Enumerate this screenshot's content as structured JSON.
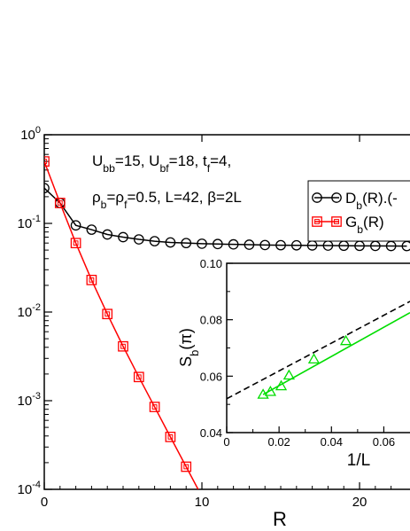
{
  "chart_data": [
    {
      "type": "line",
      "yscale": "log",
      "xlabel": "R",
      "ylabel": "",
      "xlim": [
        0,
        23.2
      ],
      "ylim": [
        0.0001,
        1
      ],
      "xticks": [
        0,
        10,
        20
      ],
      "yticks": [
        {
          "value": 1,
          "base": "10",
          "exp": "0"
        },
        {
          "value": 0.1,
          "base": "10",
          "exp": "-1"
        },
        {
          "value": 0.01,
          "base": "10",
          "exp": "-2"
        },
        {
          "value": 0.001,
          "base": "10",
          "exp": "-3"
        },
        {
          "value": 0.0001,
          "base": "10",
          "exp": "-4"
        }
      ],
      "annotation": {
        "line1": [
          {
            "t": "U",
            "s": "n"
          },
          {
            "t": "bb",
            "s": "sub"
          },
          {
            "t": "=15, U",
            "s": "n"
          },
          {
            "t": "bf",
            "s": "sub"
          },
          {
            "t": "=18, t",
            "s": "n"
          },
          {
            "t": "f",
            "s": "sub"
          },
          {
            "t": "=4,",
            "s": "n"
          }
        ],
        "line2": [
          {
            "t": "ρ",
            "s": "n"
          },
          {
            "t": "b",
            "s": "sub"
          },
          {
            "t": "=ρ",
            "s": "n"
          },
          {
            "t": "f",
            "s": "sub"
          },
          {
            "t": "=0.5, L=42, β=2L",
            "s": "n"
          }
        ]
      },
      "legend": {
        "placement": "top-right",
        "entries": [
          {
            "parts": [
              {
                "t": "D",
                "s": "n"
              },
              {
                "t": "b",
                "s": "sub"
              },
              {
                "t": "(R).(-",
                "s": "n"
              }
            ],
            "color": "#000000",
            "marker": "circle"
          },
          {
            "parts": [
              {
                "t": "G",
                "s": "n"
              },
              {
                "t": "b",
                "s": "sub"
              },
              {
                "t": "(R)",
                "s": "n"
              }
            ],
            "color": "#ff0000",
            "marker": "square"
          }
        ]
      },
      "series": [
        {
          "color": "#000000",
          "marker": "circle",
          "x": [
            0,
            1,
            2,
            3,
            4,
            5,
            6,
            7,
            8,
            9,
            10,
            11,
            12,
            13,
            14,
            15,
            16,
            17,
            18,
            19,
            20,
            21,
            22,
            23
          ],
          "y": [
            0.25,
            0.17,
            0.095,
            0.085,
            0.075,
            0.07,
            0.066,
            0.063,
            0.061,
            0.06,
            0.059,
            0.0585,
            0.058,
            0.0575,
            0.057,
            0.0568,
            0.0566,
            0.0564,
            0.0562,
            0.056,
            0.0558,
            0.0557,
            0.0556,
            0.0555
          ]
        },
        {
          "color": "#ff0000",
          "marker": "square",
          "x": [
            0,
            1,
            2,
            3,
            4,
            5,
            6,
            7,
            8,
            9,
            10
          ],
          "y": [
            0.5,
            0.17,
            0.06,
            0.023,
            0.0095,
            0.0041,
            0.00185,
            0.00085,
            0.00039,
            0.00018,
            8.3e-05
          ]
        }
      ]
    },
    {
      "type": "line",
      "xlabel": "1/L",
      "ylabel_parts": [
        {
          "t": "S",
          "s": "n"
        },
        {
          "t": "b",
          "s": "sub"
        },
        {
          "t": "(π)",
          "s": "n"
        }
      ],
      "xlim": [
        0,
        0.07
      ],
      "ylim": [
        0.04,
        0.1
      ],
      "xticks": [
        0,
        0.02,
        0.04,
        0.06
      ],
      "yticks": [
        0.04,
        0.06,
        0.08,
        0.1
      ],
      "xtick_labels": [
        "0",
        "0.02",
        "0.04",
        "0.06"
      ],
      "ytick_labels": [
        "0.04",
        "0.06",
        "0.08",
        "0.10"
      ],
      "series": [
        {
          "color": "#00dd00",
          "marker": "triangle",
          "x": [
            0.0139,
            0.0167,
            0.0208,
            0.0238,
            0.0333,
            0.0455
          ],
          "y": [
            0.0535,
            0.0545,
            0.0565,
            0.0603,
            0.066,
            0.0725
          ]
        },
        {
          "color": "#00dd00",
          "marker": "none",
          "x": [
            0.0139,
            0.07
          ],
          "y": [
            0.0535,
            0.0825
          ]
        },
        {
          "color": "#000000",
          "marker": "none",
          "dash": true,
          "x": [
            0,
            0.07
          ],
          "y": [
            0.052,
            0.0865
          ]
        }
      ]
    }
  ]
}
